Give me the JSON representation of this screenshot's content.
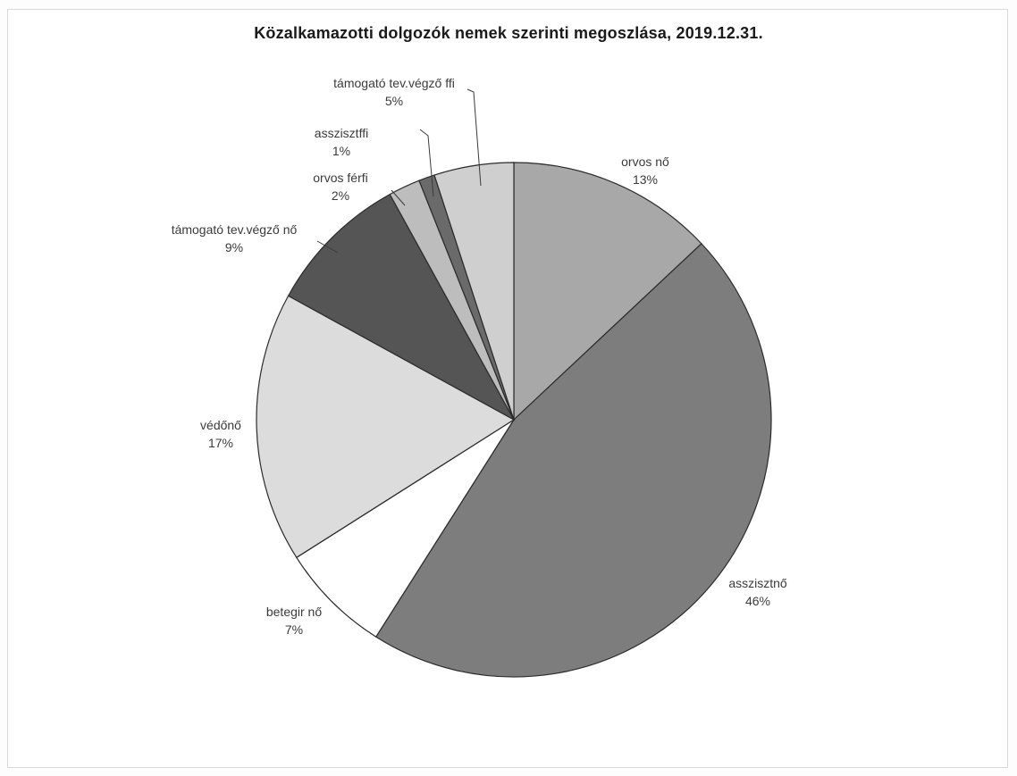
{
  "chart_data": {
    "type": "pie",
    "title": "Közalkamazotti dolgozók nemek szerinti megoszlása, 2019.12.31.",
    "series": [
      {
        "slices": [
          {
            "label": "orvos nő",
            "value": 13,
            "pct_label": "13%",
            "color": "#a8a8a8"
          },
          {
            "label": "asszisztnő",
            "value": 46,
            "pct_label": "46%",
            "color": "#7d7d7d"
          },
          {
            "label": "betegir nő",
            "value": 7,
            "pct_label": "7%",
            "color": "#ffffff"
          },
          {
            "label": "védőnő",
            "value": 17,
            "pct_label": "17%",
            "color": "#dcdcdc"
          },
          {
            "label": "támogató tev.végző nő",
            "value": 9,
            "pct_label": "9%",
            "color": "#555555"
          },
          {
            "label": "orvos férfi",
            "value": 2,
            "pct_label": "2%",
            "color": "#bdbdbd"
          },
          {
            "label": "asszisztffi",
            "value": 1,
            "pct_label": "1%",
            "color": "#6a6a6a"
          },
          {
            "label": "támogató tev.végző ffi",
            "value": 5,
            "pct_label": "5%",
            "color": "#cfcfcf"
          }
        ]
      }
    ],
    "legend": "none",
    "start_angle": "12 o'clock",
    "direction": "clockwise"
  }
}
